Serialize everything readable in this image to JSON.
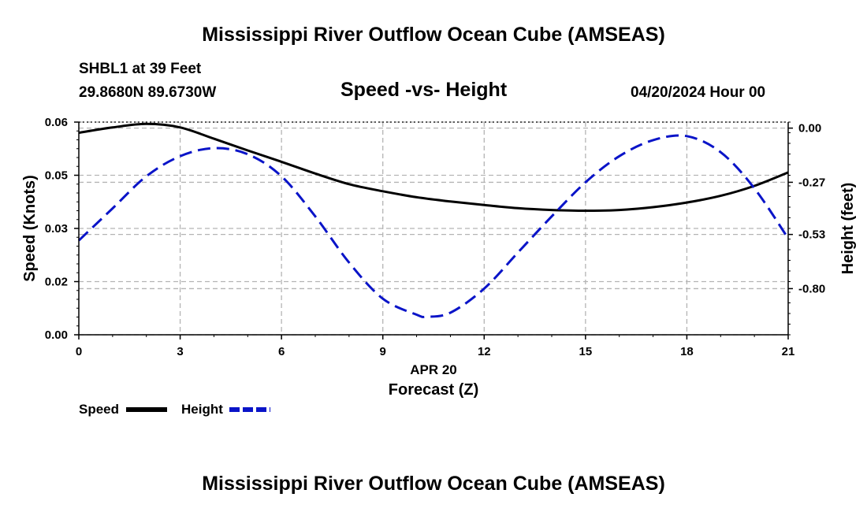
{
  "header": {
    "title": "Mississippi River Outflow Ocean Cube (AMSEAS)",
    "station": "SHBL1 at 39 Feet",
    "location": "29.8680N  89.6730W",
    "chart_title": "Speed -vs- Height",
    "datetime": "04/20/2024 Hour 00"
  },
  "footer": {
    "title": "Mississippi River Outflow Ocean Cube (AMSEAS)"
  },
  "colors": {
    "speed": "#000000",
    "height": "#0a14c8",
    "grid": "#b4b4b4"
  },
  "chart_data": {
    "type": "line",
    "title": "Speed -vs- Height",
    "xlabel": "Forecast (Z)",
    "xlabel_date": "APR 20",
    "ylabel_left": "Speed (Knots)",
    "ylabel_right": "Height (feet)",
    "xlim": [
      0,
      21
    ],
    "ylim_left": [
      0,
      0.06
    ],
    "ylim_right": [
      -1.03,
      0.03
    ],
    "x_ticks": [
      "0",
      "3",
      "6",
      "9",
      "12",
      "15",
      "18",
      "21"
    ],
    "y_left_ticks": [
      "0.00",
      "0.02",
      "0.03",
      "0.05",
      "0.06"
    ],
    "y_left_tick_values": [
      0,
      0.015,
      0.03,
      0.045,
      0.06
    ],
    "y_right_ticks": [
      "0.00",
      "-0.27",
      "-0.53",
      "-0.80"
    ],
    "y_right_tick_values": [
      0,
      -0.27,
      -0.53,
      -0.8
    ],
    "legend": [
      {
        "label": "Speed",
        "style": "solid"
      },
      {
        "label": "Height",
        "style": "dashed"
      }
    ],
    "series": [
      {
        "name": "Speed",
        "axis": "left",
        "x": [
          0,
          1,
          2,
          3,
          4,
          5,
          6,
          7,
          8,
          9,
          10,
          11,
          12,
          13,
          14,
          15,
          16,
          17,
          18,
          19,
          20,
          21
        ],
        "values": [
          0.057,
          0.0585,
          0.0595,
          0.0585,
          0.0553,
          0.052,
          0.0488,
          0.0455,
          0.0425,
          0.0405,
          0.0388,
          0.0376,
          0.0366,
          0.0357,
          0.0352,
          0.035,
          0.0352,
          0.036,
          0.0373,
          0.0392,
          0.042,
          0.0458
        ]
      },
      {
        "name": "Height",
        "axis": "right",
        "x": [
          0,
          1,
          2,
          3,
          4,
          5,
          6,
          7,
          8,
          9,
          10,
          10.3,
          11,
          12,
          13,
          14,
          15,
          16,
          17,
          18,
          19,
          20,
          21
        ],
        "values": [
          -0.56,
          -0.4,
          -0.24,
          -0.14,
          -0.1,
          -0.13,
          -0.24,
          -0.44,
          -0.67,
          -0.85,
          -0.93,
          -0.94,
          -0.92,
          -0.8,
          -0.62,
          -0.44,
          -0.27,
          -0.14,
          -0.06,
          -0.04,
          -0.12,
          -0.3,
          -0.55
        ]
      }
    ]
  }
}
